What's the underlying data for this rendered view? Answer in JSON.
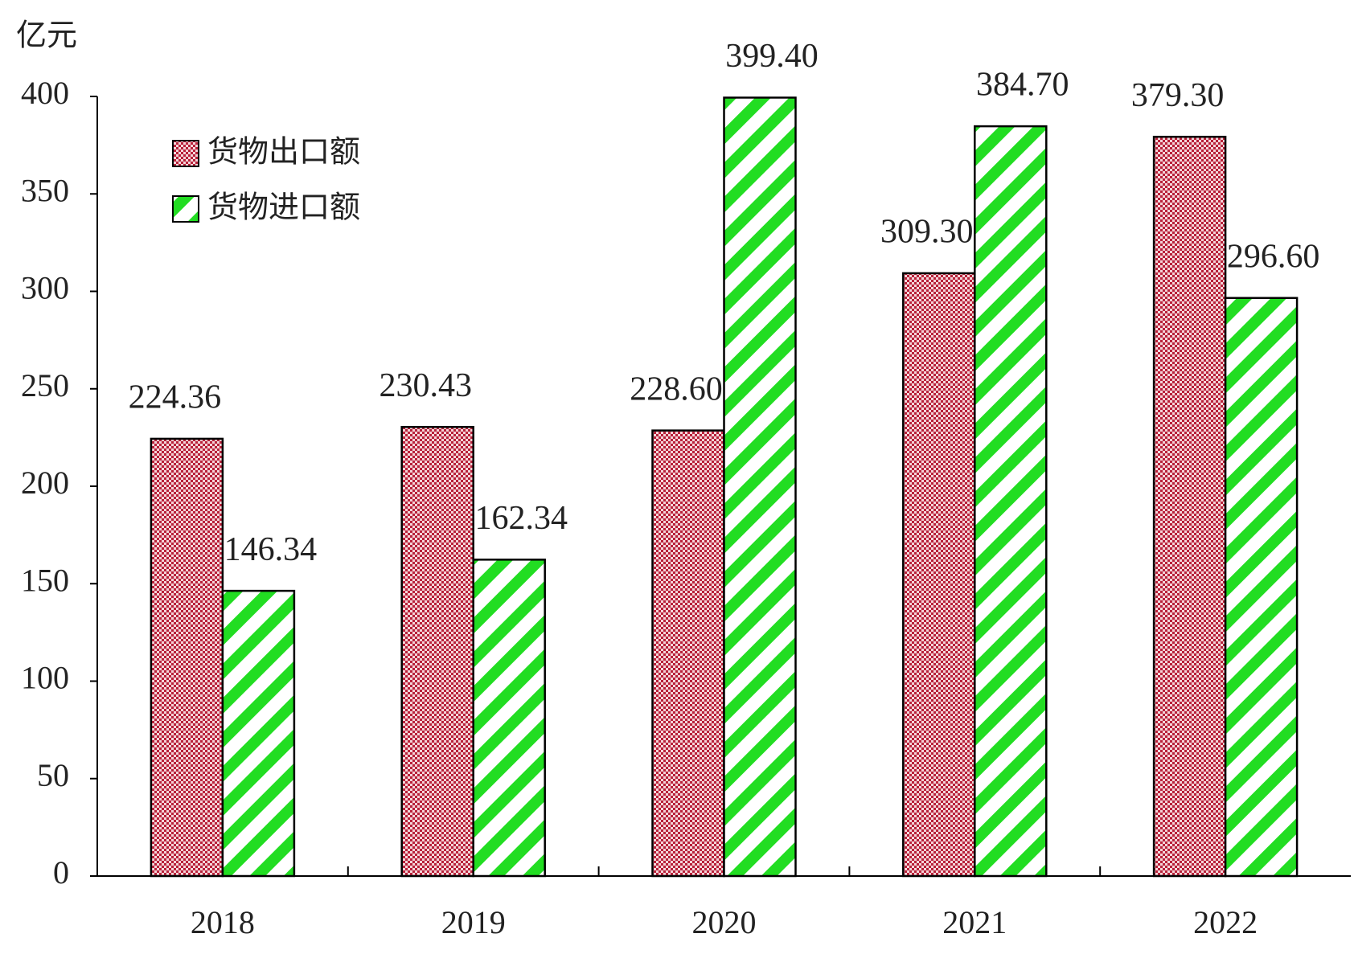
{
  "chart_data": {
    "type": "bar",
    "y_unit_label": "亿元",
    "categories": [
      "2018",
      "2019",
      "2020",
      "2021",
      "2022"
    ],
    "series": [
      {
        "name": "货物出口额",
        "color": "#b8213a",
        "values": [
          224.36,
          230.43,
          228.6,
          309.3,
          379.3
        ],
        "value_labels": [
          "224.36",
          "230.43",
          "228.60",
          "309.30",
          "379.30"
        ]
      },
      {
        "name": "货物进口额",
        "color": "#22dd22",
        "values": [
          146.34,
          162.34,
          399.4,
          384.7,
          296.6
        ],
        "value_labels": [
          "146.34",
          "162.34",
          "399.40",
          "384.70",
          "296.60"
        ]
      }
    ],
    "ylim": [
      0,
      400
    ],
    "yticks": [
      0,
      50,
      100,
      150,
      200,
      250,
      300,
      350,
      400
    ],
    "grid": false
  }
}
